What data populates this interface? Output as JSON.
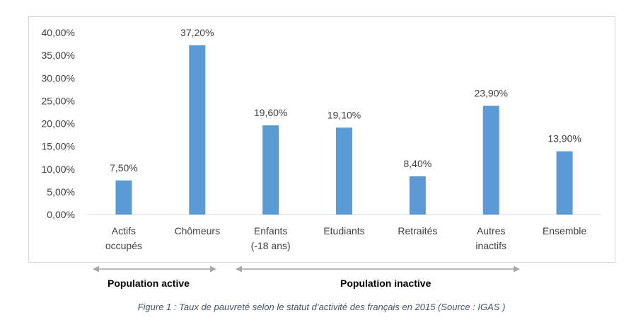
{
  "chart_data": {
    "type": "bar",
    "categories": [
      [
        "Actifs",
        "occupés"
      ],
      [
        "Chômeurs"
      ],
      [
        "Enfants",
        "(-18 ans)"
      ],
      [
        "Etudiants"
      ],
      [
        "Retraités"
      ],
      [
        "Autres",
        "inactifs"
      ],
      [
        "Ensemble"
      ]
    ],
    "values": [
      7.5,
      37.2,
      19.6,
      19.1,
      8.4,
      23.9,
      13.9
    ],
    "data_labels": [
      "7,50%",
      "37,20%",
      "19,60%",
      "19,10%",
      "8,40%",
      "23,90%",
      "13,90%"
    ],
    "y_ticks": [
      "0,00%",
      "5,00%",
      "10,00%",
      "15,00%",
      "20,00%",
      "25,00%",
      "30,00%",
      "35,00%",
      "40,00%"
    ],
    "ylim": [
      0,
      40
    ],
    "bar_color": "#5b9bd5",
    "grid": false,
    "legend": "none"
  },
  "groups": {
    "active": "Population active",
    "inactive": "Population inactive"
  },
  "caption": "Figure 1 : Taux de pauvreté selon le statut d’activité des français en 2015 (Source : IGAS )"
}
